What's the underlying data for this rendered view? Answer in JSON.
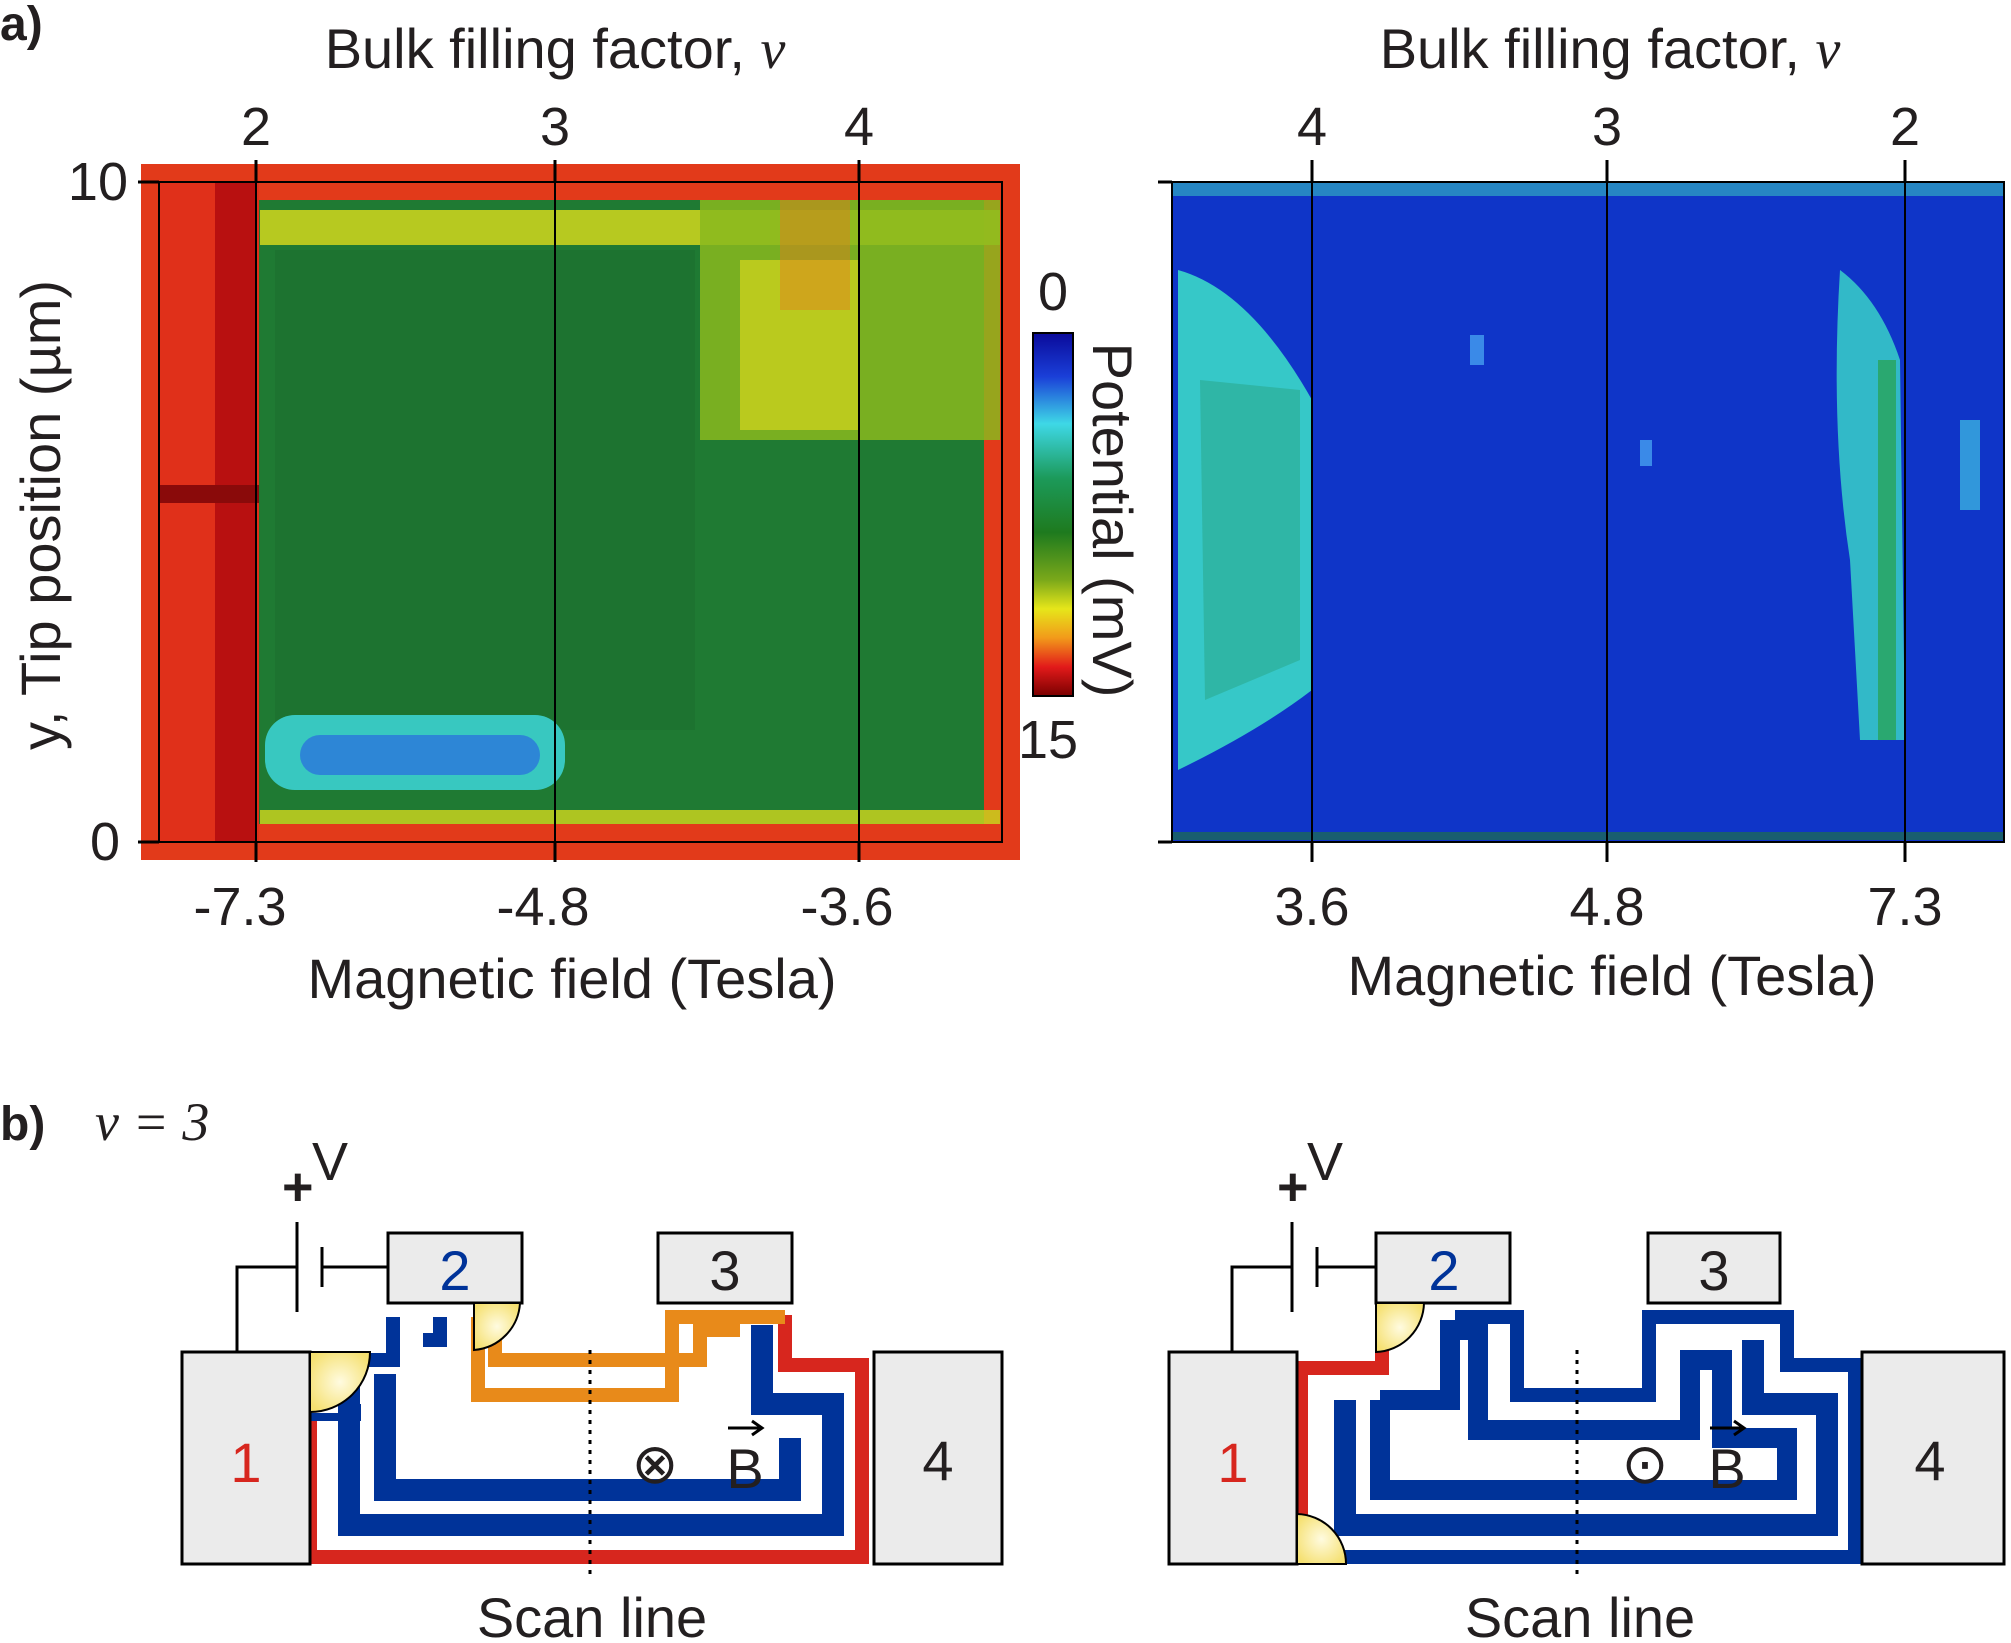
{
  "panel_a": {
    "label": "a)",
    "left": {
      "top_axis_title": "Bulk filling factor, ",
      "nu_symbol": "ν",
      "top_ticks": [
        "2",
        "3",
        "4"
      ],
      "bottom_ticks": [
        "-7.3",
        "-4.8",
        "-3.6"
      ],
      "bottom_axis_title": "Magnetic field (Tesla)",
      "y_axis_title": "y, Tip position (µm)",
      "y_ticks": [
        "10",
        "0"
      ]
    },
    "right": {
      "top_axis_title": "Bulk filling factor, ",
      "nu_symbol": "ν",
      "top_ticks": [
        "4",
        "3",
        "2"
      ],
      "bottom_ticks": [
        "3.6",
        "4.8",
        "7.3"
      ],
      "bottom_axis_title": "Magnetic field (Tesla)"
    },
    "colorbar": {
      "title": "Potential (mV)",
      "min_label": "0",
      "max_label": "15"
    }
  },
  "panel_b": {
    "label": "b)",
    "nu_label": "ν = 3",
    "left": {
      "plus": "+",
      "v_label": "V",
      "contacts": [
        "1",
        "2",
        "3",
        "4"
      ],
      "field_symbol": "⊗",
      "b_label": "B",
      "scan_label": "Scan line"
    },
    "right": {
      "plus": "+",
      "v_label": "V",
      "contacts": [
        "1",
        "2",
        "3",
        "4"
      ],
      "field_symbol": "⊙",
      "b_label": "B",
      "scan_label": "Scan line"
    }
  },
  "colors": {
    "edge_red": "#d7261e",
    "edge_blue": "#003399",
    "edge_orange": "#e88a1a",
    "contact_fill": "#ebebeb",
    "hotspot": "#fff6b0"
  }
}
